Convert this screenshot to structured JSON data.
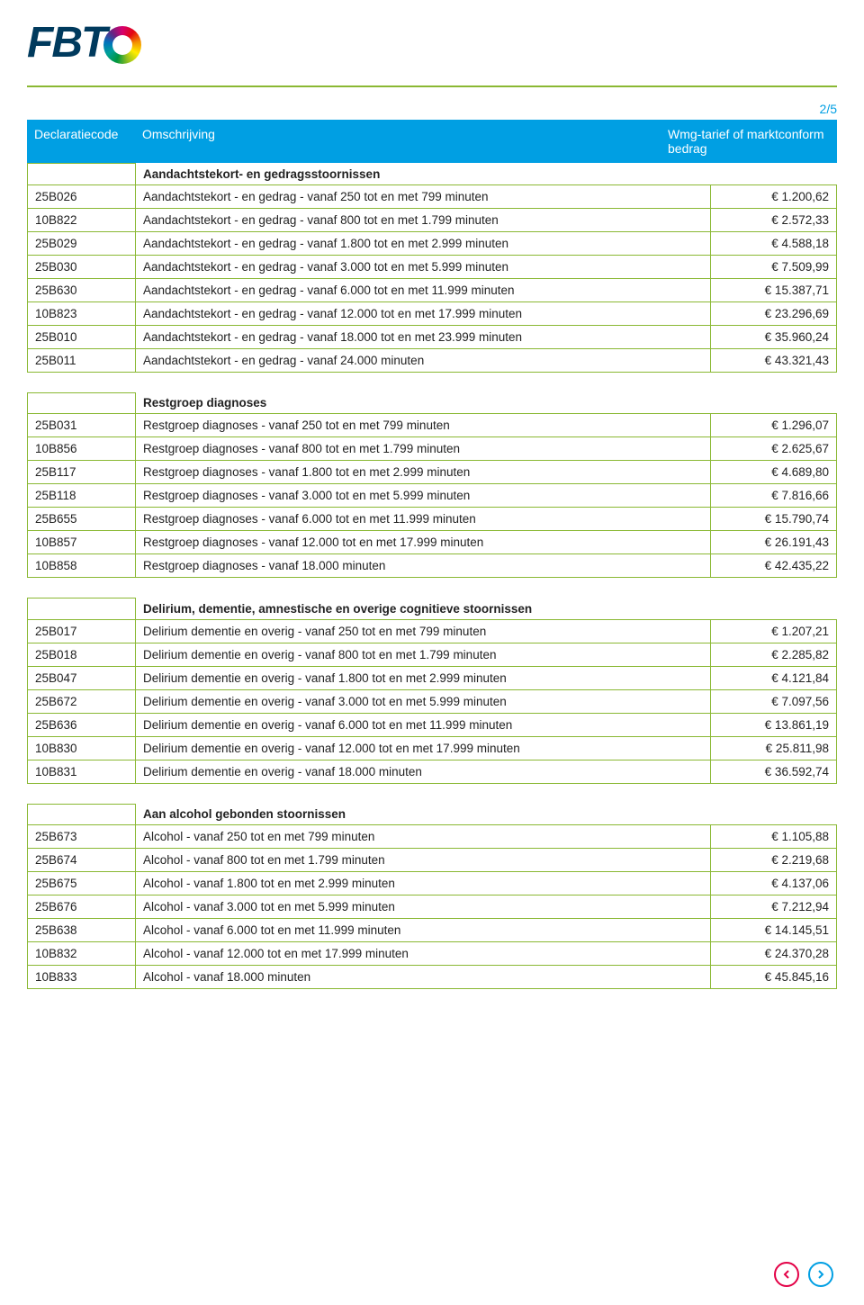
{
  "page_indicator": "2/5",
  "logo_text": "FBT",
  "header": {
    "col1": "Declaratiecode",
    "col2": "Omschrijving",
    "col3": "Wmg-tarief of marktconform bedrag"
  },
  "sections": [
    {
      "title": "Aandachtstekort- en gedragsstoornissen",
      "rows": [
        {
          "code": "25B026",
          "desc": "Aandachtstekort - en gedrag - vanaf 250 tot en met 799 minuten",
          "amt": "€ 1.200,62"
        },
        {
          "code": "10B822",
          "desc": "Aandachtstekort - en gedrag - vanaf 800 tot en met 1.799 minuten",
          "amt": "€ 2.572,33"
        },
        {
          "code": "25B029",
          "desc": "Aandachtstekort - en gedrag - vanaf 1.800 tot en met 2.999 minuten",
          "amt": "€ 4.588,18"
        },
        {
          "code": "25B030",
          "desc": "Aandachtstekort - en gedrag - vanaf 3.000 tot en met 5.999 minuten",
          "amt": "€ 7.509,99"
        },
        {
          "code": "25B630",
          "desc": "Aandachtstekort - en gedrag - vanaf 6.000 tot en met 11.999 minuten",
          "amt": "€ 15.387,71"
        },
        {
          "code": "10B823",
          "desc": "Aandachtstekort - en gedrag - vanaf 12.000 tot en met 17.999 minuten",
          "amt": "€ 23.296,69"
        },
        {
          "code": "25B010",
          "desc": "Aandachtstekort - en gedrag - vanaf 18.000 tot en met 23.999 minuten",
          "amt": "€ 35.960,24"
        },
        {
          "code": "25B011",
          "desc": "Aandachtstekort - en gedrag - vanaf 24.000 minuten",
          "amt": "€ 43.321,43"
        }
      ]
    },
    {
      "title": "Restgroep diagnoses",
      "rows": [
        {
          "code": "25B031",
          "desc": "Restgroep diagnoses - vanaf 250 tot en met 799 minuten",
          "amt": "€ 1.296,07"
        },
        {
          "code": "10B856",
          "desc": "Restgroep diagnoses - vanaf 800 tot en met 1.799 minuten",
          "amt": "€ 2.625,67"
        },
        {
          "code": "25B117",
          "desc": "Restgroep diagnoses - vanaf 1.800 tot en met 2.999 minuten",
          "amt": "€ 4.689,80"
        },
        {
          "code": "25B118",
          "desc": "Restgroep diagnoses - vanaf 3.000 tot en met 5.999 minuten",
          "amt": "€ 7.816,66"
        },
        {
          "code": "25B655",
          "desc": "Restgroep diagnoses - vanaf 6.000 tot en met 11.999 minuten",
          "amt": "€ 15.790,74"
        },
        {
          "code": "10B857",
          "desc": "Restgroep diagnoses - vanaf 12.000 tot en met 17.999 minuten",
          "amt": "€ 26.191,43"
        },
        {
          "code": "10B858",
          "desc": "Restgroep diagnoses - vanaf 18.000 minuten",
          "amt": "€ 42.435,22"
        }
      ]
    },
    {
      "title": "Delirium, dementie, amnestische en overige cognitieve stoornissen",
      "rows": [
        {
          "code": "25B017",
          "desc": "Delirium dementie en overig - vanaf 250 tot en met 799 minuten",
          "amt": "€ 1.207,21"
        },
        {
          "code": "25B018",
          "desc": "Delirium dementie en overig - vanaf 800 tot en met 1.799 minuten",
          "amt": "€ 2.285,82"
        },
        {
          "code": "25B047",
          "desc": "Delirium dementie en overig - vanaf 1.800 tot en met 2.999 minuten",
          "amt": "€ 4.121,84"
        },
        {
          "code": "25B672",
          "desc": "Delirium dementie en overig - vanaf 3.000 tot en met 5.999 minuten",
          "amt": "€ 7.097,56"
        },
        {
          "code": "25B636",
          "desc": "Delirium dementie en overig - vanaf 6.000 tot en met 11.999 minuten",
          "amt": "€ 13.861,19"
        },
        {
          "code": "10B830",
          "desc": "Delirium dementie en overig - vanaf 12.000 tot en met 17.999 minuten",
          "amt": "€ 25.811,98"
        },
        {
          "code": "10B831",
          "desc": "Delirium dementie en overig - vanaf 18.000 minuten",
          "amt": "€ 36.592,74"
        }
      ]
    },
    {
      "title": "Aan alcohol gebonden stoornissen",
      "rows": [
        {
          "code": "25B673",
          "desc": "Alcohol - vanaf 250 tot en met 799 minuten",
          "amt": "€ 1.105,88"
        },
        {
          "code": "25B674",
          "desc": "Alcohol - vanaf 800 tot en met 1.799 minuten",
          "amt": "€ 2.219,68"
        },
        {
          "code": "25B675",
          "desc": "Alcohol - vanaf 1.800 tot en met 2.999 minuten",
          "amt": "€ 4.137,06"
        },
        {
          "code": "25B676",
          "desc": "Alcohol - vanaf 3.000 tot en met 5.999 minuten",
          "amt": "€ 7.212,94"
        },
        {
          "code": "25B638",
          "desc": "Alcohol - vanaf 6.000 tot en met 11.999 minuten",
          "amt": "€ 14.145,51"
        },
        {
          "code": "10B832",
          "desc": "Alcohol - vanaf 12.000 tot en met 17.999 minuten",
          "amt": "€ 24.370,28"
        },
        {
          "code": "10B833",
          "desc": "Alcohol - vanaf 18.000 minuten",
          "amt": "€ 45.845,16"
        }
      ]
    }
  ],
  "colors": {
    "header_bg": "#009fe3",
    "border": "#8ab833",
    "logo_text": "#003a5d",
    "prev": "#e30046",
    "next": "#009fe3"
  }
}
